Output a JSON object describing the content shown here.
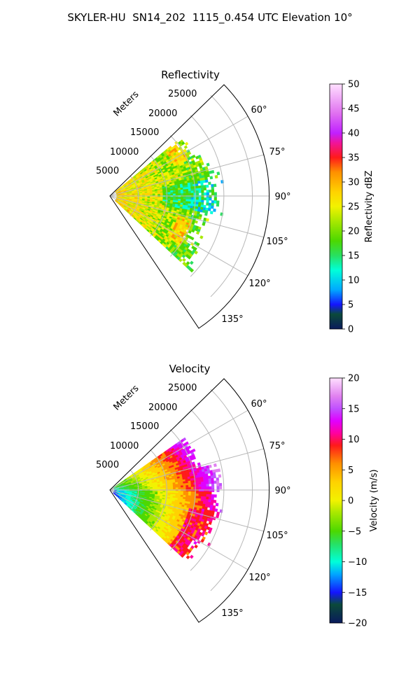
{
  "figure": {
    "title": "SKYLER-HU  SN14_202  1115_0.454 UTC Elevation 10°"
  },
  "chart_data": [
    {
      "type": "heatmap",
      "title": "Reflectivity",
      "radial_label": "Meters",
      "radial_ticks": [
        "5000",
        "10000",
        "15000",
        "20000",
        "25000"
      ],
      "angular_ticks": [
        "60°",
        "75°",
        "90°",
        "105°",
        "120°",
        "135°"
      ],
      "angle_range_deg": [
        45,
        135
      ],
      "colorbar": {
        "label": "Reflectivity dBZ",
        "range": [
          0,
          50
        ],
        "ticks": [
          "0",
          "5",
          "10",
          "15",
          "20",
          "25",
          "30",
          "35",
          "40",
          "45",
          "50"
        ]
      },
      "colors": {
        "0": "#0a1a5c",
        "3": "#0b4a3a",
        "5": "#1414ff",
        "8": "#00a8ff",
        "12": "#00ffd9",
        "15": "#28e060",
        "18": "#4cd800",
        "22": "#a8e800",
        "25": "#f2f200",
        "28": "#ffd200",
        "32": "#ff9000",
        "35": "#ff1a1a",
        "38": "#f0149a",
        "40": "#c020ff",
        "44": "#e070f0",
        "50": "#ffe0ff"
      },
      "grid": true
    },
    {
      "type": "heatmap",
      "title": "Velocity",
      "radial_label": "Meters",
      "radial_ticks": [
        "5000",
        "10000",
        "15000",
        "20000",
        "25000"
      ],
      "angular_ticks": [
        "60°",
        "75°",
        "90°",
        "105°",
        "120°",
        "135°"
      ],
      "angle_range_deg": [
        45,
        135
      ],
      "colorbar": {
        "label": "Velocity (m/s)",
        "range": [
          -20,
          20
        ],
        "ticks": [
          "20",
          "15",
          "10",
          "5",
          "0",
          "−5",
          "−10",
          "−15",
          "−20"
        ]
      },
      "colors": {
        "-20": "#0a1a5c",
        "-17": "#0b4a3a",
        "-15": "#1414ff",
        "-12": "#00a8ff",
        "-10": "#00ffd9",
        "-7": "#28e060",
        "-5": "#4cd800",
        "-2": "#a8e800",
        "0": "#f2f200",
        "3": "#ffd200",
        "6": "#ff9000",
        "9": "#ff1a1a",
        "11": "#ff00a0",
        "13": "#e000ff",
        "15": "#c050ff",
        "17": "#e080f0",
        "20": "#ffe0ff"
      },
      "grid": true
    }
  ]
}
